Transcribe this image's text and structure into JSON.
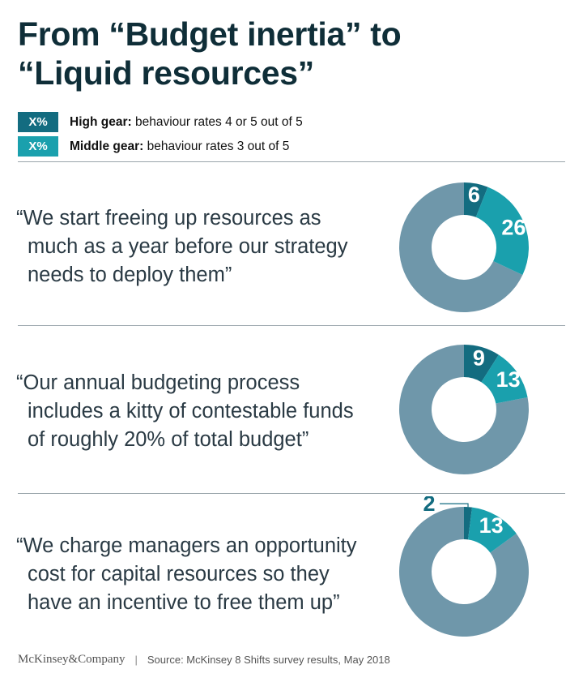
{
  "title": [
    "From “Budget inertia” to",
    "“Liquid resources”"
  ],
  "legend": [
    {
      "swatch": "X%",
      "bold": "High gear:",
      "text": " behaviour rates 4 or 5 out of 5",
      "color": "#136c80"
    },
    {
      "swatch": "X%",
      "bold": "Middle gear:",
      "text": " behaviour rates 3 out of 5",
      "color": "#1aa0ad"
    }
  ],
  "colors": {
    "high": "#136c80",
    "middle": "#1aa0ad",
    "rest": "#6f97aa"
  },
  "chart_data": [
    {
      "type": "pie",
      "quote": [
        "“We start freeing up resources as",
        "much as a year before our strategy",
        "needs to deploy them”"
      ],
      "series": [
        {
          "name": "High gear",
          "value": 6
        },
        {
          "name": "Middle gear",
          "value": 26
        }
      ]
    },
    {
      "type": "pie",
      "quote": [
        "“Our annual budgeting process",
        "includes a kitty of contestable funds",
        "of roughly 20% of total budget”"
      ],
      "series": [
        {
          "name": "High gear",
          "value": 9
        },
        {
          "name": "Middle gear",
          "value": 13
        }
      ]
    },
    {
      "type": "pie",
      "quote": [
        "“We charge managers an opportunity",
        "cost for capital resources so they",
        "have an incentive to free them up”"
      ],
      "series": [
        {
          "name": "High gear",
          "value": 2
        },
        {
          "name": "Middle gear",
          "value": 13
        }
      ]
    }
  ],
  "footer": {
    "brand": "McKinsey&Company",
    "separator": "|",
    "source": "Source: McKinsey 8 Shifts survey results, May 2018"
  }
}
